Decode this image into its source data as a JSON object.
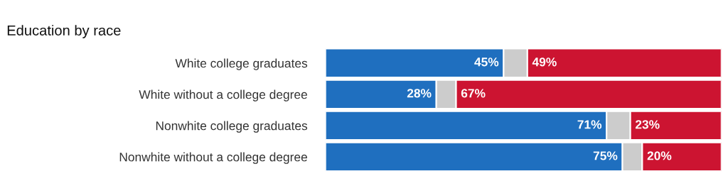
{
  "chart_data": {
    "type": "bar",
    "orientation": "horizontal",
    "stacked": true,
    "title": "Education by race",
    "categories": [
      "White college graduates",
      "White without a college degree",
      "Nonwhite college graduates",
      "Nonwhite without a college degree"
    ],
    "series": [
      {
        "color": "#1f6fbf",
        "values": [
          45,
          28,
          71,
          75
        ],
        "value_labels": [
          "45%",
          "28%",
          "71%",
          "75%"
        ]
      },
      {
        "color": "#cccccc",
        "values": [
          6,
          5,
          6,
          5
        ],
        "value_labels": [
          null,
          null,
          null,
          null
        ]
      },
      {
        "color": "#cc1431",
        "values": [
          49,
          67,
          23,
          20
        ],
        "value_labels": [
          "49%",
          "67%",
          "23%",
          "20%"
        ]
      }
    ],
    "tick_labels": "y",
    "grid": false,
    "legend": false
  }
}
